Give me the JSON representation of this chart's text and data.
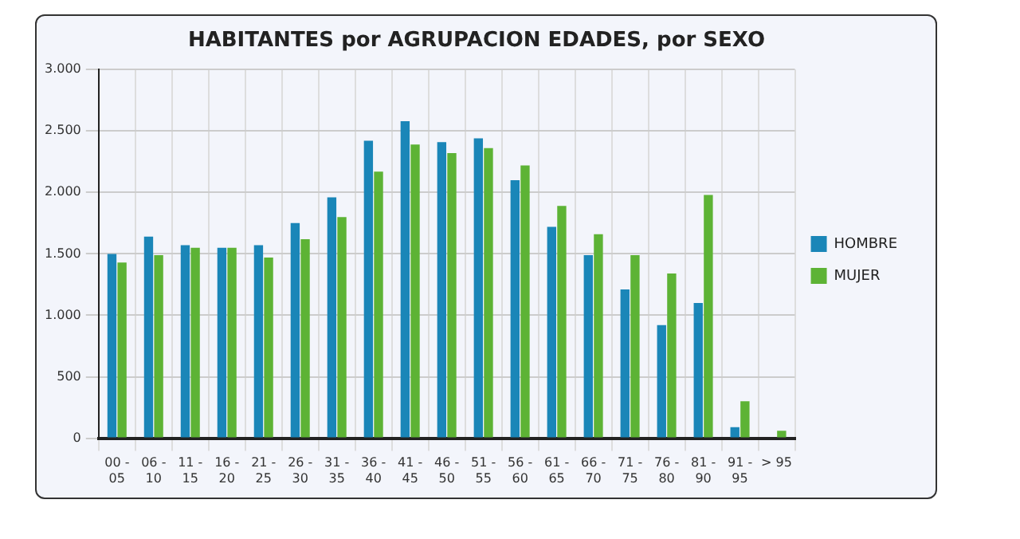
{
  "chart_data": {
    "type": "bar",
    "title": "HABITANTES por AGRUPACION EDADES, por SEXO",
    "categories": [
      "00 - 05",
      "06 - 10",
      "11 - 15",
      "16 - 20",
      "21 - 25",
      "26 - 30",
      "31 - 35",
      "36 - 40",
      "41 - 45",
      "46 - 50",
      "51 - 55",
      "56 - 60",
      "61 - 65",
      "66 - 70",
      "71 - 75",
      "76 - 80",
      "81 - 90",
      "91 - 95",
      "> 95"
    ],
    "series": [
      {
        "name": "HOMBRE",
        "color": "#1a86b8",
        "values": [
          1500,
          1640,
          1570,
          1550,
          1570,
          1750,
          1960,
          2420,
          2580,
          2410,
          2440,
          2100,
          1720,
          1490,
          1210,
          920,
          1100,
          90,
          null
        ]
      },
      {
        "name": "MUJER",
        "color": "#5db335",
        "values": [
          1430,
          1490,
          1550,
          1550,
          1470,
          1620,
          1800,
          2170,
          2390,
          2320,
          2360,
          2220,
          1890,
          1660,
          1490,
          1340,
          1980,
          300,
          60
        ]
      }
    ],
    "ylim": [
      0,
      3000
    ],
    "yticks": [
      {
        "value": 0,
        "label": "0"
      },
      {
        "value": 500,
        "label": "500"
      },
      {
        "value": 1000,
        "label": "1.000"
      },
      {
        "value": 1500,
        "label": "1.500"
      },
      {
        "value": 2000,
        "label": "2.000"
      },
      {
        "value": 2500,
        "label": "2.500"
      },
      {
        "value": 3000,
        "label": "3.000"
      }
    ],
    "grid": true,
    "legend": "right"
  }
}
